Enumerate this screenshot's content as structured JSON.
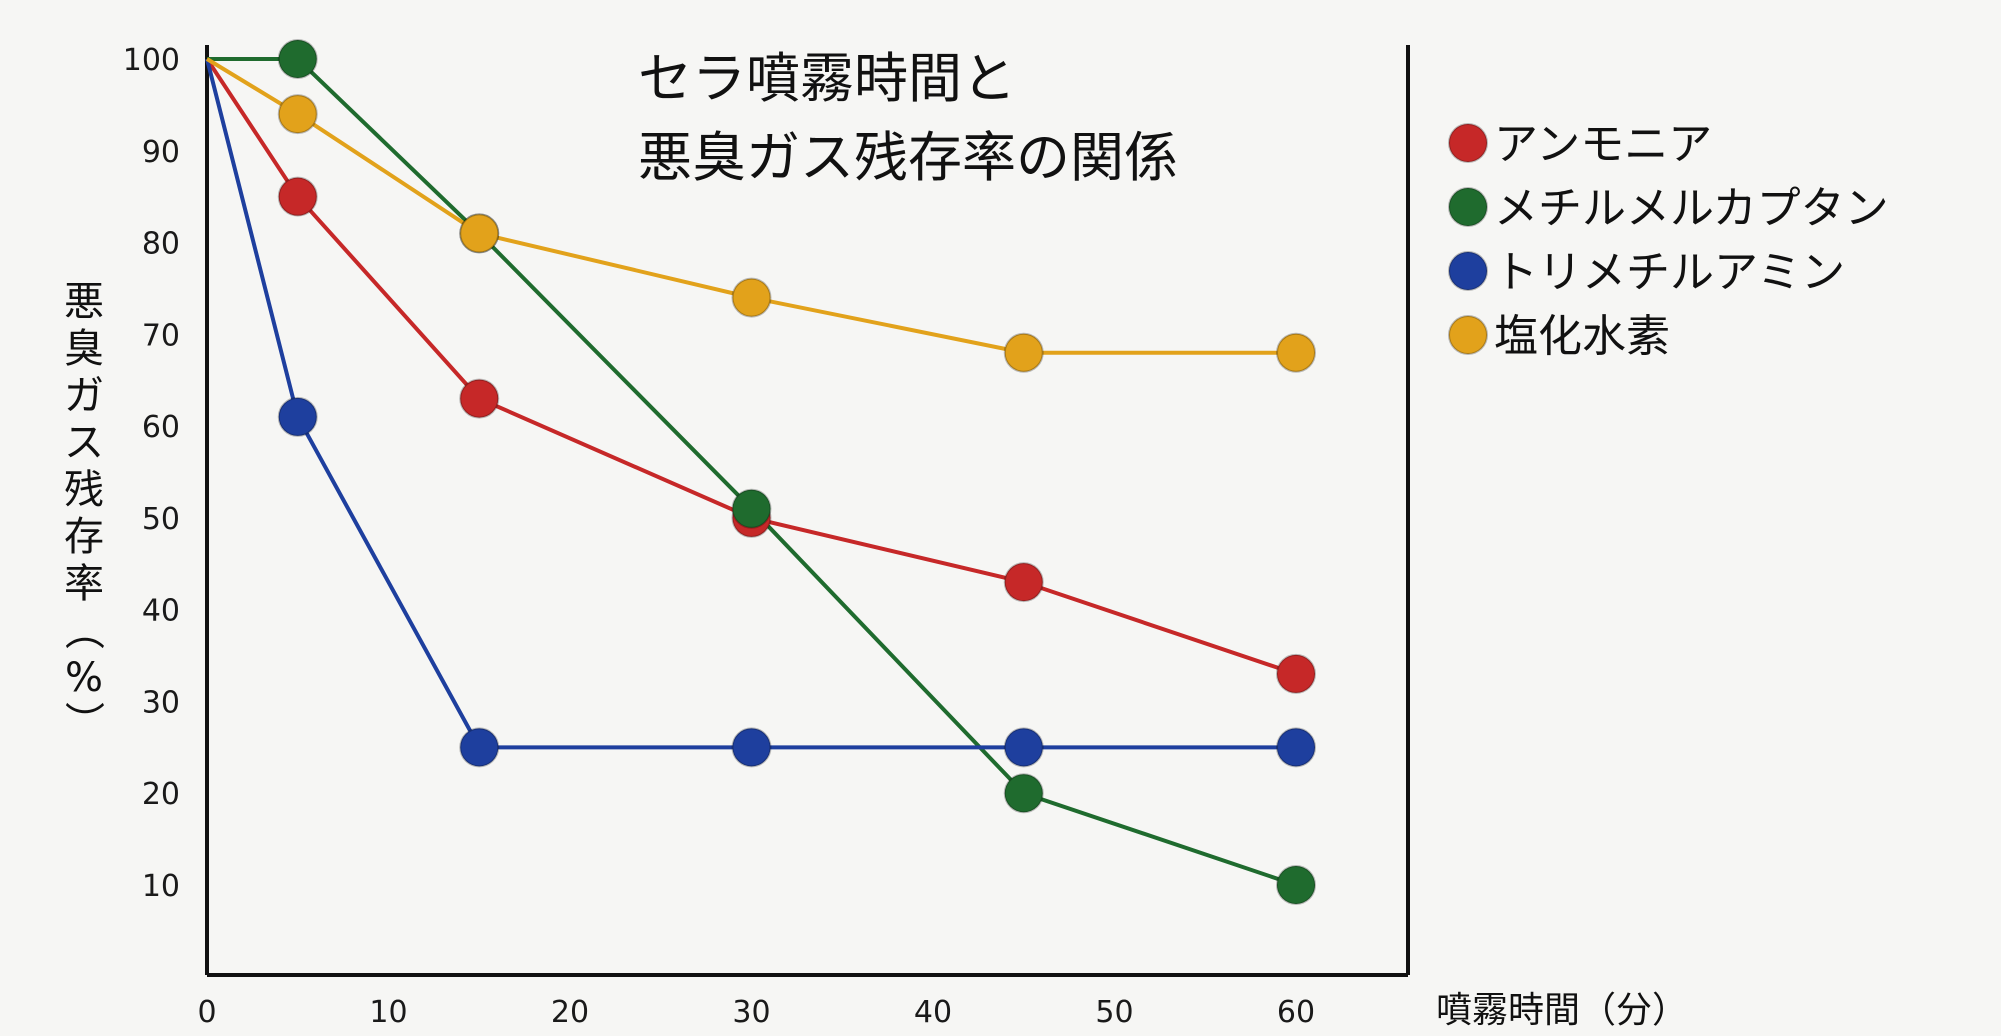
{
  "chart_data": {
    "type": "line",
    "title": [
      "セラ噴霧時間と",
      "悪臭ガス残存率の関係"
    ],
    "xlabel": "噴霧時間（分）",
    "ylabel": "悪臭ガス残存率（%）",
    "xlim": [
      0,
      65
    ],
    "ylim": [
      0,
      102
    ],
    "xticks": [
      0,
      10,
      20,
      30,
      40,
      50,
      60
    ],
    "yticks": [
      10,
      20,
      30,
      40,
      50,
      60,
      70,
      80,
      90,
      100
    ],
    "grid": false,
    "legend_position": "right",
    "series": [
      {
        "name": "アンモニア",
        "color": "#c62828",
        "x": [
          0,
          5,
          15,
          30,
          45,
          60
        ],
        "y": [
          100,
          85,
          63,
          50,
          43,
          33
        ]
      },
      {
        "name": "メチルメルカプタン",
        "color": "#1f6b2e",
        "x": [
          0,
          5,
          15,
          30,
          45,
          60
        ],
        "y": [
          100,
          100,
          81,
          51,
          20,
          10
        ]
      },
      {
        "name": "トリメチルアミン",
        "color": "#1e3f9e",
        "x": [
          0,
          5,
          15,
          30,
          45,
          60
        ],
        "y": [
          100,
          61,
          25,
          25,
          25,
          25
        ]
      },
      {
        "name": "塩化水素",
        "color": "#e2a21b",
        "x": [
          0,
          5,
          15,
          30,
          45,
          60
        ],
        "y": [
          100,
          94,
          81,
          74,
          68,
          68
        ]
      }
    ]
  }
}
